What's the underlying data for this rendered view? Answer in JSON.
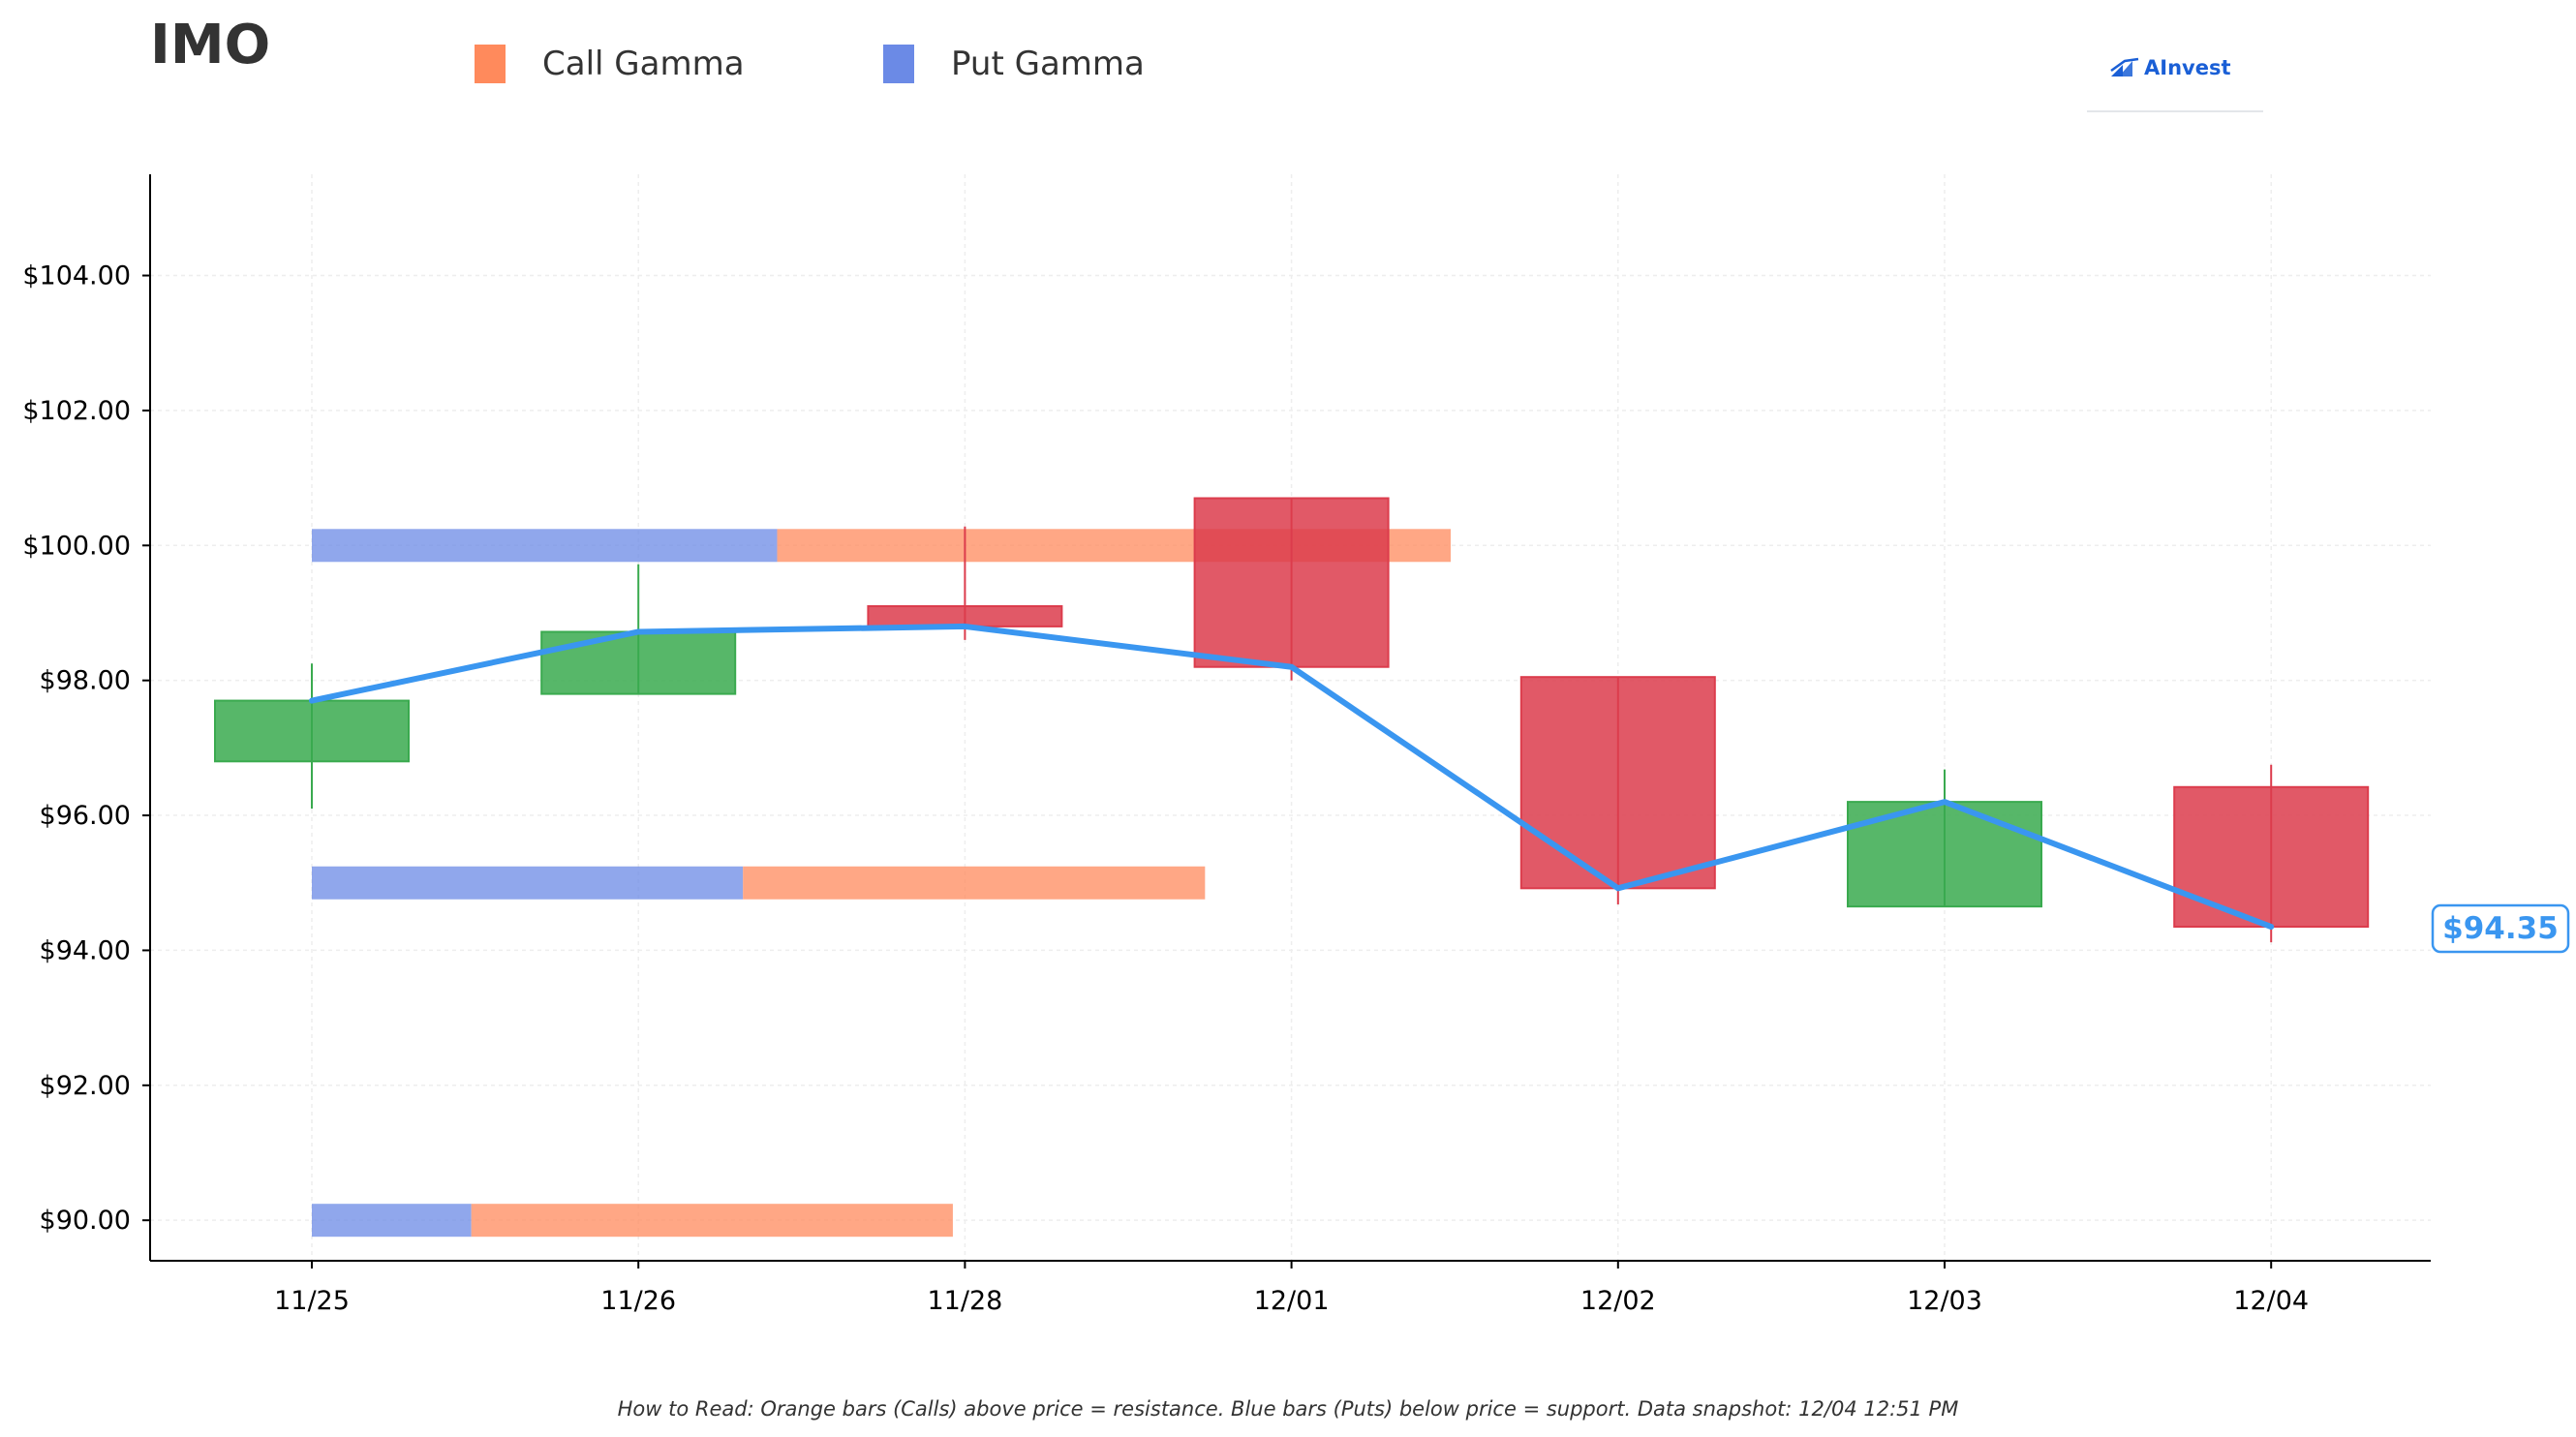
{
  "header": {
    "ticker": "IMO",
    "brand": "AInvest"
  },
  "legend": {
    "call_label": "Call Gamma",
    "put_label": "Put Gamma",
    "call_color": "#ff8a5c",
    "put_color": "#6b8ae6"
  },
  "footnote": "How to Read: Orange bars (Calls) above price = resistance. Blue bars (Puts) below price = support. Data snapshot: 12/04 12:51 PM",
  "chart_data": {
    "type": "candlestick",
    "categories": [
      "11/25",
      "11/26",
      "11/28",
      "12/01",
      "12/02",
      "12/03",
      "12/04"
    ],
    "ylim": [
      89.4,
      105.5
    ],
    "yticks": [
      90,
      92,
      94,
      96,
      98,
      100,
      102,
      104
    ],
    "ytick_labels": [
      "$90.00",
      "$92.00",
      "$94.00",
      "$96.00",
      "$98.00",
      "$100.00",
      "$102.00",
      "$104.00"
    ],
    "grid": true,
    "candles": [
      {
        "date": "11/25",
        "open": 96.8,
        "close": 97.7,
        "high": 98.25,
        "low": 96.1
      },
      {
        "date": "11/26",
        "open": 97.8,
        "close": 98.72,
        "high": 99.72,
        "low": 97.8
      },
      {
        "date": "11/28",
        "open": 99.1,
        "close": 98.8,
        "high": 100.28,
        "low": 98.6
      },
      {
        "date": "12/01",
        "open": 100.7,
        "close": 98.2,
        "high": 100.7,
        "low": 98.0
      },
      {
        "date": "12/02",
        "open": 98.05,
        "close": 94.92,
        "high": 98.05,
        "low": 94.68
      },
      {
        "date": "12/03",
        "open": 94.65,
        "close": 96.2,
        "high": 96.68,
        "low": 94.65
      },
      {
        "date": "12/04",
        "open": 96.42,
        "close": 94.35,
        "high": 96.75,
        "low": 94.12
      }
    ],
    "price_line": [
      97.7,
      98.72,
      98.8,
      98.2,
      94.92,
      96.2,
      94.35
    ],
    "price_line_color": "#3a96f0",
    "up_color": "#3aaa4f",
    "down_color": "#dc3c4c",
    "current_price": 94.35,
    "current_price_label": "$94.35",
    "gamma_levels": [
      {
        "strike": 100.0,
        "put_gamma": 2.86,
        "call_gamma": 4.14
      },
      {
        "strike": 95.0,
        "put_gamma": 2.65,
        "call_gamma": 2.84
      },
      {
        "strike": 90.0,
        "put_gamma": 0.98,
        "call_gamma": 2.96
      }
    ]
  }
}
